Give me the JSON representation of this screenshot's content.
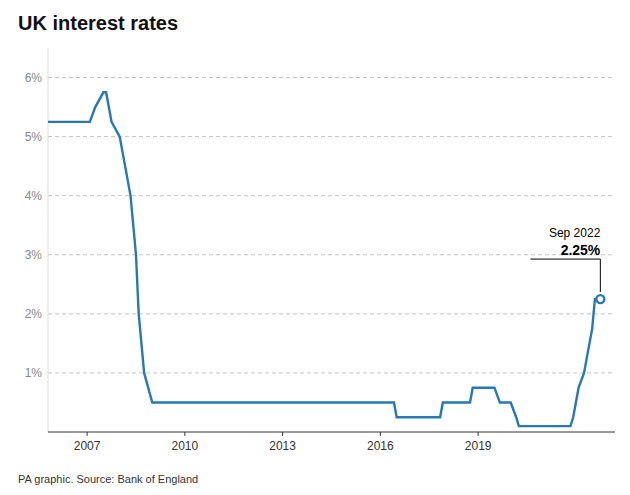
{
  "chart_data": {
    "type": "line",
    "title": "UK interest rates",
    "subtitle": "PA graphic. Source: Bank of England",
    "color": "#2878b5",
    "x": [
      2005.8,
      2007.0,
      2007.083,
      2007.25,
      2007.5,
      2007.583,
      2007.667,
      2007.75,
      2008.0,
      2008.167,
      2008.333,
      2008.5,
      2008.583,
      2008.667,
      2008.75,
      2009.0,
      2016.417,
      2016.5,
      2016.917,
      2017.833,
      2017.917,
      2018.75,
      2018.833,
      2019.5,
      2019.667,
      2020.0,
      2020.167,
      2020.25,
      2021.833,
      2021.917,
      2022.0,
      2022.083,
      2022.25,
      2022.333,
      2022.5,
      2022.583,
      2022.75
    ],
    "values": [
      5.25,
      5.25,
      5.25,
      5.5,
      5.75,
      5.75,
      5.5,
      5.25,
      5.0,
      4.5,
      4.0,
      3.0,
      2.0,
      1.5,
      1.0,
      0.5,
      0.5,
      0.25,
      0.25,
      0.25,
      0.5,
      0.5,
      0.75,
      0.75,
      0.5,
      0.5,
      0.25,
      0.1,
      0.1,
      0.25,
      0.5,
      0.75,
      1.0,
      1.25,
      1.75,
      2.25,
      2.25
    ],
    "xlim": [
      2005.8,
      2023.2
    ],
    "ylim": [
      0,
      6.5
    ],
    "xticks": [
      2007,
      2010,
      2013,
      2016,
      2019
    ],
    "yticks": [
      {
        "value": 1,
        "label": "1%"
      },
      {
        "value": 2,
        "label": "2%"
      },
      {
        "value": 3,
        "label": "3%"
      },
      {
        "value": 4,
        "label": "4%"
      },
      {
        "value": 5,
        "label": "5%"
      },
      {
        "value": 6,
        "label": "6%"
      }
    ],
    "grid": true,
    "annotations": [
      {
        "label": "Sep 2022"
      },
      {
        "label": "2.25%",
        "x": 2022.75,
        "value": 2.25
      }
    ]
  }
}
